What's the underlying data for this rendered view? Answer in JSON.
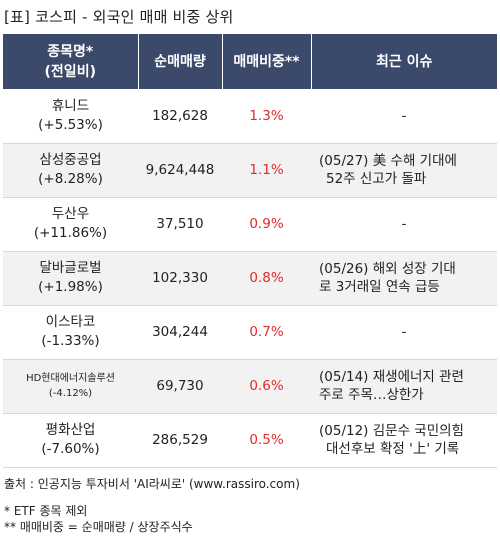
{
  "title": "[표] 코스피 - 외국인 매매 비중 상위",
  "headers": {
    "name_line1": "종목명*",
    "name_line2": "(전일비)",
    "volume": "순매매량",
    "ratio": "매매비중**",
    "issue": "최근 이슈"
  },
  "rows": [
    {
      "name": "휴니드",
      "change": "(+5.53%)",
      "volume": "182,628",
      "ratio": "1.3%",
      "issue1": "-",
      "issue2": ""
    },
    {
      "name": "삼성중공업",
      "change": "(+8.28%)",
      "volume": "9,624,448",
      "ratio": "1.1%",
      "issue1": "(05/27) 美 수해 기대에",
      "issue2": "52주 신고가 돌파"
    },
    {
      "name": "두산우",
      "change": "(+11.86%)",
      "volume": "37,510",
      "ratio": "0.9%",
      "issue1": "-",
      "issue2": ""
    },
    {
      "name": "달바글로벌",
      "change": "(+1.98%)",
      "volume": "102,330",
      "ratio": "0.8%",
      "issue1": "(05/26) 해외 성장 기대",
      "issue2": "로 3거래일 연속 급등"
    },
    {
      "name": "이스타코",
      "change": "(-1.33%)",
      "volume": "304,244",
      "ratio": "0.7%",
      "issue1": "-",
      "issue2": ""
    },
    {
      "name": "HD현대에너지솔루션",
      "change": "(-4.12%)",
      "volume": "69,730",
      "ratio": "0.6%",
      "issue1": "(05/14) 재생에너지 관련",
      "issue2": "주로 주목…상한가"
    },
    {
      "name": "평화산업",
      "change": "(-7.60%)",
      "volume": "286,529",
      "ratio": "0.5%",
      "issue1": "(05/12) 김문수 국민의힘",
      "issue2": "대선후보 확정 '上' 기록"
    }
  ],
  "source": "출처 : 인공지능 투자비서 'AI라씨로' (www.rassiro.com)",
  "notes": {
    "n1": "* ETF 종목 제외",
    "n2": "** 매매비중 = 순매매량 / 상장주식수"
  }
}
